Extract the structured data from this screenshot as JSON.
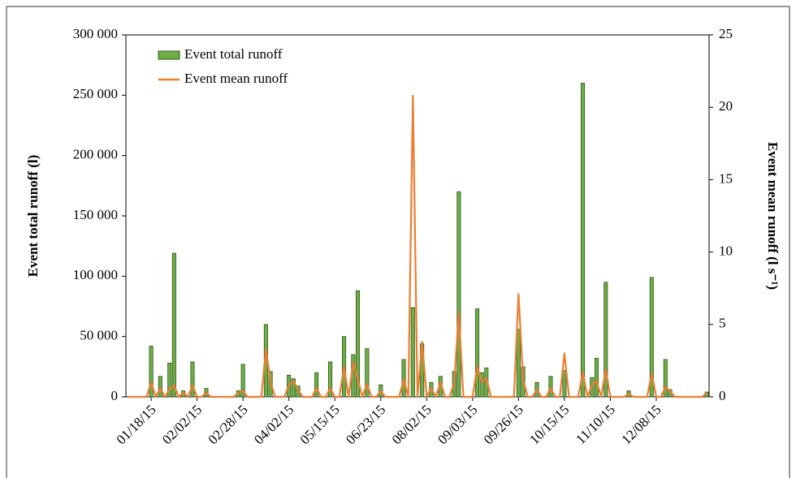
{
  "chart_data": {
    "type": "bar",
    "categories": [
      null,
      null,
      null,
      null,
      null,
      "01/18/15",
      null,
      null,
      null,
      null,
      null,
      null,
      null,
      null,
      null,
      "02/02/15",
      null,
      null,
      null,
      null,
      null,
      null,
      null,
      null,
      null,
      "02/28/15",
      null,
      null,
      null,
      null,
      null,
      null,
      null,
      null,
      null,
      "04/02/15",
      null,
      null,
      null,
      null,
      null,
      null,
      null,
      null,
      null,
      "05/15/15",
      null,
      null,
      null,
      null,
      null,
      null,
      null,
      null,
      null,
      "06/23/15",
      null,
      null,
      null,
      null,
      null,
      null,
      null,
      null,
      null,
      "08/02/15",
      null,
      null,
      null,
      null,
      null,
      null,
      null,
      null,
      null,
      "09/03/15",
      null,
      null,
      null,
      null,
      null,
      null,
      null,
      null,
      null,
      "09/26/15",
      null,
      null,
      null,
      null,
      null,
      null,
      null,
      null,
      null,
      "10/15/15",
      null,
      null,
      null,
      null,
      null,
      null,
      null,
      null,
      null,
      "11/10/15",
      null,
      null,
      null,
      null,
      null,
      null,
      null,
      null,
      null,
      "12/08/15",
      null,
      null,
      null,
      null,
      null,
      null,
      null,
      null,
      null,
      null,
      null
    ],
    "y_label": "Event total runoff (l)",
    "y2_label": "Event mean runoff (l s⁻¹)",
    "ylim": [
      0,
      300000
    ],
    "yticks": [
      0,
      {
        "value": 50000,
        "label": "50 000"
      },
      {
        "value": 100000,
        "label": "100 000"
      },
      {
        "value": 150000,
        "label": "150 000"
      },
      {
        "value": 200000,
        "label": "200 000"
      },
      {
        "value": 250000,
        "label": "250 000"
      },
      {
        "value": 300000,
        "label": "300 000"
      }
    ],
    "y2lim": [
      0,
      25
    ],
    "y2ticks": [
      0,
      5,
      10,
      15,
      20,
      25
    ],
    "legend": "upper left",
    "series": [
      {
        "name": "Event total runoff",
        "type": "bar",
        "color": "#70ad47",
        "values": [
          0,
          0,
          0,
          0,
          0,
          42000,
          0,
          17000,
          0,
          28000,
          119000,
          0,
          5000,
          0,
          29000,
          0,
          0,
          7000,
          0,
          0,
          0,
          0,
          0,
          0,
          5000,
          27000,
          0,
          0,
          0,
          0,
          60000,
          21000,
          0,
          0,
          0,
          18000,
          15000,
          9000,
          0,
          0,
          0,
          20000,
          0,
          0,
          29000,
          0,
          0,
          50000,
          0,
          35000,
          88000,
          0,
          40000,
          0,
          0,
          10000,
          0,
          0,
          0,
          0,
          31000,
          0,
          74000,
          0,
          44000,
          0,
          12000,
          0,
          17000,
          0,
          0,
          21000,
          170000,
          0,
          0,
          0,
          73000,
          20000,
          24000,
          0,
          0,
          0,
          0,
          0,
          0,
          56000,
          25000,
          0,
          0,
          12000,
          0,
          0,
          17000,
          0,
          0,
          22000,
          0,
          0,
          0,
          260000,
          0,
          16000,
          32000,
          0,
          95000,
          0,
          0,
          0,
          0,
          5000,
          0,
          0,
          0,
          0,
          99000,
          0,
          0,
          31000,
          6000,
          0,
          0,
          0,
          0,
          0,
          0,
          0,
          4000
        ]
      },
      {
        "name": "Event mean runoff",
        "type": "line",
        "axis": "y2",
        "color": "#ed7d31",
        "values": [
          0,
          0,
          0,
          0,
          0,
          1.0,
          0,
          0.6,
          0,
          0.5,
          0.8,
          0,
          0.3,
          0,
          0.8,
          0,
          0,
          0.3,
          0,
          0,
          0,
          0,
          0,
          0,
          0.3,
          0.4,
          0,
          0,
          0,
          0,
          3.3,
          1.0,
          0,
          0,
          0,
          0.8,
          1.1,
          0.5,
          0,
          0,
          0,
          0.6,
          0,
          0,
          0.6,
          0,
          0,
          2.1,
          0,
          2.4,
          1.2,
          0,
          0.9,
          0,
          0,
          0.4,
          0,
          0,
          0,
          0,
          1.2,
          0,
          20.8,
          0,
          3.8,
          0,
          0.6,
          0,
          1.0,
          0,
          0,
          1.0,
          5.8,
          0,
          0,
          0,
          2.1,
          1.0,
          1.3,
          0,
          0,
          0,
          0,
          0,
          0,
          7.1,
          1.2,
          0,
          0,
          0.5,
          0,
          0,
          0.6,
          0,
          0,
          3.0,
          0,
          0,
          0,
          1.7,
          0,
          0.8,
          1.1,
          0,
          1.9,
          0,
          0,
          0,
          0,
          0.2,
          0,
          0,
          0,
          0,
          1.6,
          0,
          0,
          0.7,
          0.4,
          0,
          0,
          0,
          0,
          0,
          0,
          0,
          0.3
        ]
      }
    ]
  }
}
